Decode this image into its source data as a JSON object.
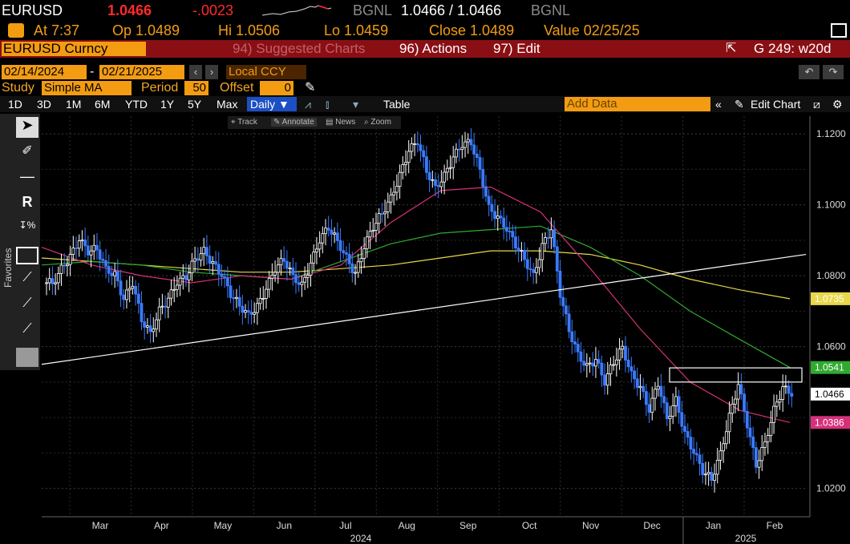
{
  "quote": {
    "ticker": "EURUSD",
    "price": "1.0466",
    "change": "-.0023",
    "source1": "BGNL",
    "bid_ask": "1.0466 / 1.0466",
    "source2": "BGNL",
    "at": "At 7:37",
    "open": "Op 1.0489",
    "high": "Hi 1.0506",
    "low": "Lo 1.0459",
    "close": "Close 1.0489",
    "value": "Value 02/25/25"
  },
  "toolbar": {
    "security": "EURUSD Curncy",
    "suggested": "94) Suggested Charts",
    "actions": "96) Actions",
    "edit": "97) Edit",
    "chart_id": "G 249: w20d"
  },
  "range": {
    "start": "02/14/2024",
    "end": "02/21/2025",
    "ccy": "Local CCY"
  },
  "study": {
    "label": "Study",
    "name": "Simple MA",
    "period_label": "Period",
    "period": "50",
    "offset_label": "Offset",
    "offset": "0"
  },
  "periods": [
    "1D",
    "3D",
    "1M",
    "6M",
    "YTD",
    "1Y",
    "5Y",
    "Max"
  ],
  "freq": "Daily",
  "table_label": "Table",
  "add_data_placeholder": "Add Data",
  "edit_chart": "Edit Chart",
  "favorites": "Favorites",
  "tools": {
    "track": "Track",
    "annotate": "Annotate",
    "news": "News",
    "zoom": "Zoom"
  },
  "colors": {
    "up_candle": "#ffffff",
    "down_candle": "#3b7bff",
    "ma_yellow": "#e8d84a",
    "ma_green": "#2faa2f",
    "ma_magenta": "#d6307a",
    "trendline": "#ffffff"
  },
  "chart_data": {
    "type": "candlestick",
    "y_ticks": [
      "1.1200",
      "1.1000",
      "1.0800",
      "1.0600",
      "1.0200"
    ],
    "ylim": [
      1.012,
      1.125
    ],
    "x_month_labels": [
      "Mar",
      "Apr",
      "May",
      "Jun",
      "Jul",
      "Aug",
      "Sep",
      "Oct",
      "Nov",
      "Dec",
      "Jan",
      "Feb"
    ],
    "x_year_labels": [
      "2024",
      "2025"
    ],
    "price_labels": [
      {
        "value": "1.0735",
        "color": "#e8d84a"
      },
      {
        "value": "1.0541",
        "color": "#2faa2f"
      },
      {
        "value": "1.0466",
        "color": "#ffffff"
      },
      {
        "value": "1.0386",
        "color": "#d6307a"
      }
    ],
    "close_series_approx": [
      1.078,
      1.082,
      1.085,
      1.09,
      1.087,
      1.088,
      1.082,
      1.08,
      1.073,
      1.078,
      1.068,
      1.064,
      1.07,
      1.073,
      1.078,
      1.08,
      1.085,
      1.087,
      1.083,
      1.08,
      1.075,
      1.072,
      1.069,
      1.071,
      1.076,
      1.082,
      1.085,
      1.08,
      1.077,
      1.083,
      1.09,
      1.094,
      1.09,
      1.085,
      1.08,
      1.088,
      1.094,
      1.098,
      1.102,
      1.108,
      1.115,
      1.118,
      1.11,
      1.105,
      1.108,
      1.113,
      1.117,
      1.118,
      1.11,
      1.099,
      1.096,
      1.093,
      1.089,
      1.085,
      1.08,
      1.088,
      1.093,
      1.075,
      1.065,
      1.058,
      1.054,
      1.056,
      1.05,
      1.056,
      1.06,
      1.052,
      1.048,
      1.042,
      1.05,
      1.04,
      1.045,
      1.035,
      1.03,
      1.025,
      1.023,
      1.03,
      1.04,
      1.049,
      1.038,
      1.027,
      1.033,
      1.042,
      1.048,
      1.0466
    ],
    "ma_slow_approx": [
      1.085,
      1.084,
      1.083,
      1.082,
      1.081,
      1.081,
      1.082,
      1.083,
      1.085,
      1.087,
      1.087,
      1.086,
      1.083,
      1.079,
      1.076,
      1.0735
    ],
    "ma_mid_approx": [
      1.083,
      1.084,
      1.083,
      1.081,
      1.08,
      1.079,
      1.084,
      1.089,
      1.092,
      1.093,
      1.094,
      1.088,
      1.08,
      1.07,
      1.062,
      1.0541
    ],
    "ma_fast_approx": [
      1.088,
      1.083,
      1.08,
      1.078,
      1.08,
      1.079,
      1.083,
      1.095,
      1.104,
      1.105,
      1.098,
      1.082,
      1.065,
      1.05,
      1.042,
      1.0386
    ],
    "trendline": [
      1.055,
      1.086
    ],
    "resistance_box": [
      1.05,
      1.054
    ]
  }
}
